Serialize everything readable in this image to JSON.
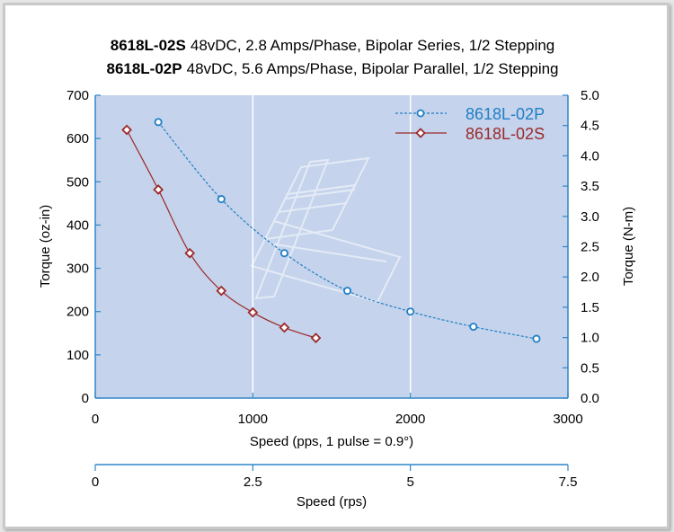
{
  "chart_data": {
    "type": "line",
    "title_lines": [
      {
        "model": "8618L-02S",
        "spec": "48vDC, 2.8 Amps/Phase, Bipolar Series, 1/2 Stepping"
      },
      {
        "model": "8618L-02P",
        "spec": "48vDC, 5.6 Amps/Phase, Bipolar Parallel, 1/2 Stepping"
      }
    ],
    "xlabel": "Speed (pps, 1 pulse = 0.9°)",
    "xlabel2": "Speed (rps)",
    "ylabel": "Torque (oz-in)",
    "ylabel2": "Torque (N-m)",
    "xlim": [
      0,
      3000
    ],
    "ylim": [
      0,
      700
    ],
    "y2lim": [
      0.0,
      5.0
    ],
    "x2lim": [
      0,
      7.5
    ],
    "xticks": [
      "0",
      "1000",
      "2000",
      "3000"
    ],
    "yticks": [
      "0",
      "100",
      "200",
      "300",
      "400",
      "500",
      "600",
      "700"
    ],
    "y2ticks": [
      "0.0",
      "0.5",
      "1.0",
      "1.5",
      "2.0",
      "2.5",
      "3.0",
      "3.5",
      "4.0",
      "4.5",
      "5.0"
    ],
    "x2ticks": [
      "0",
      "2.5",
      "5",
      "7.5"
    ],
    "grid": true,
    "legend_position": "top-right",
    "colors": {
      "plot_background": "#c5d3ec",
      "axis": "#2f86c8",
      "series_02P": "#1f7fc4",
      "series_02S": "#9b2a2a"
    },
    "series": [
      {
        "name": "8618L-02P",
        "marker": "circle",
        "line_style": "dashed",
        "x": [
          400,
          800,
          1200,
          1600,
          2000,
          2400,
          2800
        ],
        "y": [
          638,
          460,
          335,
          248,
          200,
          165,
          137
        ]
      },
      {
        "name": "8618L-02S",
        "marker": "diamond",
        "line_style": "solid",
        "x": [
          200,
          400,
          600,
          800,
          1000,
          1200,
          1400
        ],
        "y": [
          620,
          482,
          335,
          248,
          198,
          163,
          139
        ]
      }
    ]
  }
}
